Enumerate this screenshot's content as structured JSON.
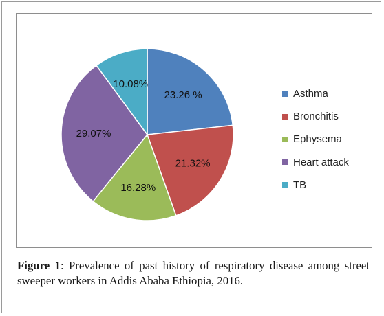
{
  "chart_data": {
    "type": "pie",
    "categories": [
      "Asthma",
      "Bronchitis",
      "Ephysema",
      "Heart attack",
      "TB"
    ],
    "values": [
      23.26,
      21.32,
      16.28,
      29.07,
      10.08
    ],
    "data_labels": [
      "23.26 %",
      "21.32%",
      "16.28%",
      "29.07%",
      "10.08%"
    ],
    "colors": [
      "#4F81BD",
      "#C0504D",
      "#9BBB59",
      "#8064A2",
      "#4BACC6"
    ],
    "start_angle_deg": 0,
    "direction": "clockwise",
    "legend_position": "right",
    "title": ""
  },
  "caption": {
    "figure_label": "Figure 1",
    "text": ": Prevalence of past history of respiratory disease among street sweeper workers in Addis Ababa Ethiopia, 2016."
  }
}
